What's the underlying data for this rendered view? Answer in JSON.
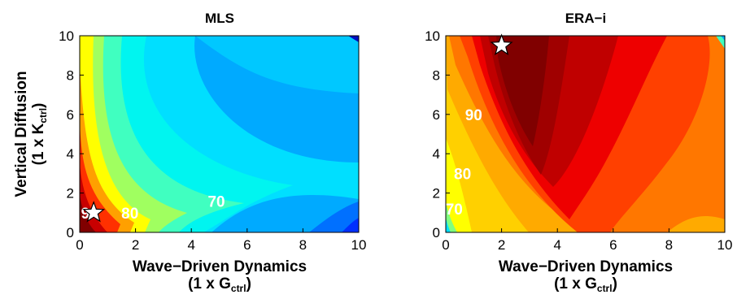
{
  "chart_data": [
    {
      "type": "heatmap",
      "title": "MLS",
      "xlabel_line1": "Wave−Driven Dynamics",
      "xlabel_line2_prefix": "(1 x G",
      "xlabel_line2_sub": "ctrl",
      "xlabel_line2_suffix": ")",
      "ylabel_line1": "Vertical Diffusion",
      "ylabel_line2_prefix": "(1 x K",
      "ylabel_line2_sub": "ctrl",
      "ylabel_line2_suffix": ")",
      "xlim": [
        0,
        10
      ],
      "ylim": [
        0,
        10
      ],
      "xticks": [
        "0",
        "2",
        "4",
        "6",
        "8",
        "10"
      ],
      "yticks": [
        "0",
        "2",
        "4",
        "6",
        "8",
        "10"
      ],
      "best_fit_star": {
        "x": 0.5,
        "y": 1
      },
      "contour_labels": [
        {
          "text": "80",
          "x": 1.8,
          "y": 1.0
        },
        {
          "text": "70",
          "x": 4.9,
          "y": 1.6
        },
        {
          "text": "9",
          "x": 0.2,
          "y": 1.0
        }
      ],
      "colors": [
        "#0050ff",
        "#00aaff",
        "#00dfff",
        "#40ffc0",
        "#a0ff60",
        "#ffff00",
        "#ffa000",
        "#ff3000",
        "#c80000",
        "#800000"
      ]
    },
    {
      "type": "heatmap",
      "title": "ERA−i",
      "xlabel_line1": "Wave−Driven Dynamics",
      "xlabel_line2_prefix": "(1 x G",
      "xlabel_line2_sub": "ctrl",
      "xlabel_line2_suffix": ")",
      "xlim": [
        0,
        10
      ],
      "ylim": [
        0,
        10
      ],
      "xticks": [
        "0",
        "2",
        "4",
        "6",
        "8",
        "10"
      ],
      "yticks": [
        "0",
        "2",
        "4",
        "6",
        "8",
        "10"
      ],
      "best_fit_star": {
        "x": 2,
        "y": 9.5
      },
      "contour_labels": [
        {
          "text": "90",
          "x": 1.0,
          "y": 6.0
        },
        {
          "text": "80",
          "x": 0.6,
          "y": 3.0
        },
        {
          "text": "70",
          "x": 0.3,
          "y": 1.2
        }
      ],
      "colors": [
        "#ffff00",
        "#ffc000",
        "#ff8800",
        "#ff4000",
        "#ee0000",
        "#c00000",
        "#800000"
      ]
    }
  ]
}
